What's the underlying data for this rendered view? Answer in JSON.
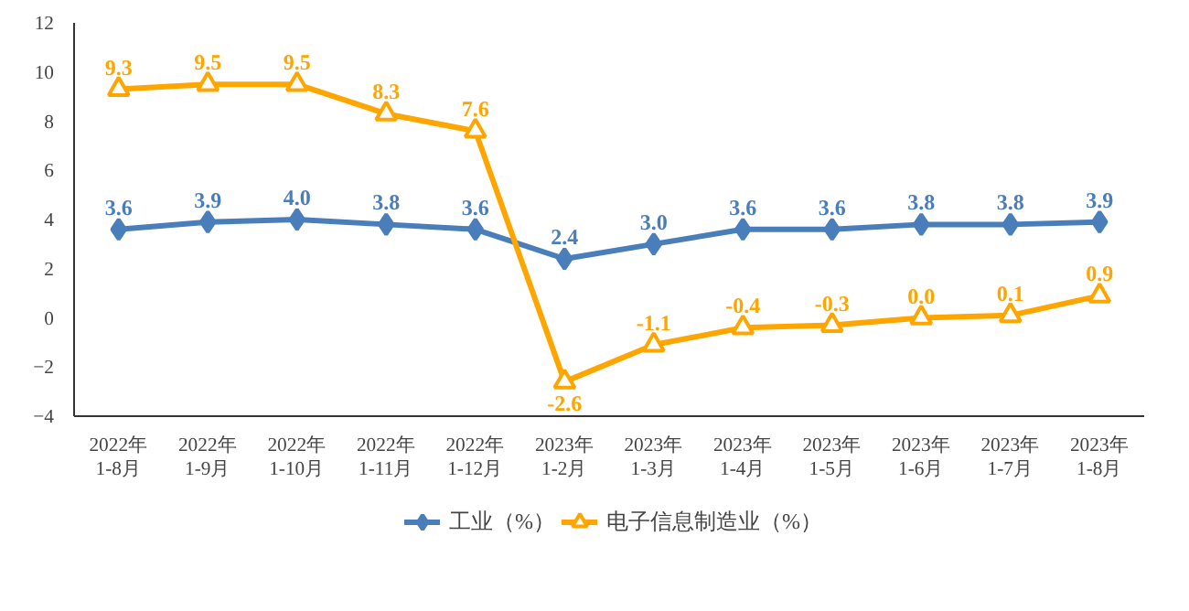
{
  "chart_data": {
    "type": "line",
    "categories": [
      "2022年\n1-8月",
      "2022年\n1-9月",
      "2022年\n1-10月",
      "2022年\n1-11月",
      "2022年\n1-12月",
      "2023年\n1-2月",
      "2023年\n1-3月",
      "2023年\n1-4月",
      "2023年\n1-5月",
      "2023年\n1-6月",
      "2023年\n1-7月",
      "2023年\n1-8月"
    ],
    "series": [
      {
        "name": "工业（%）",
        "color": "#4a7ebb",
        "marker": "diamond",
        "values": [
          3.6,
          3.9,
          4.0,
          3.8,
          3.6,
          2.4,
          3.0,
          3.6,
          3.6,
          3.8,
          3.8,
          3.9
        ],
        "value_labels": [
          "3.6",
          "3.9",
          "4.0",
          "3.8",
          "3.6",
          "2.4",
          "3.0",
          "3.6",
          "3.6",
          "3.8",
          "3.8",
          "3.9"
        ]
      },
      {
        "name": "电子信息制造业（%）",
        "color": "#ffa500",
        "marker": "triangle",
        "values": [
          9.3,
          9.5,
          9.5,
          8.3,
          7.6,
          -2.6,
          -1.1,
          -0.4,
          -0.3,
          0.0,
          0.1,
          0.9
        ],
        "value_labels": [
          "9.3",
          "9.5",
          "9.5",
          "8.3",
          "7.6",
          "-2.6",
          "-1.1",
          "-0.4",
          "-0.3",
          "0.0",
          "0.1",
          "0.9"
        ]
      }
    ],
    "ylim": [
      -4,
      12
    ],
    "yticks": [
      -4,
      -2,
      0,
      2,
      4,
      6,
      8,
      10,
      12
    ],
    "grid": false,
    "data_labels": true,
    "legend": "bottom",
    "line_style": "solid"
  }
}
